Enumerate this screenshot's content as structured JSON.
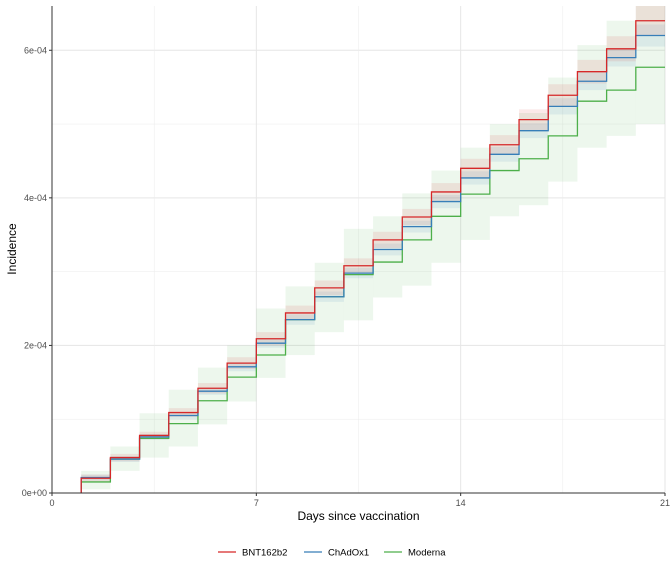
{
  "chart_data": {
    "type": "line",
    "step": true,
    "xlabel": "Days since vaccination",
    "ylabel": "Incidence",
    "xlim": [
      0,
      21
    ],
    "ylim": [
      0,
      0.00066
    ],
    "x_ticks": [
      0,
      7,
      14,
      21
    ],
    "x_tick_labels": [
      "0",
      "7",
      "14",
      "21"
    ],
    "y_ticks": [
      0,
      0.0002,
      0.0004,
      0.0006
    ],
    "y_tick_labels": [
      "0e+00",
      "2e-04",
      "4e-04",
      "6e-04"
    ],
    "grid": true,
    "legend_position": "bottom",
    "x": [
      1,
      2,
      3,
      4,
      5,
      6,
      7,
      8,
      9,
      10,
      11,
      12,
      13,
      14,
      15,
      16,
      17,
      18,
      19,
      20
    ],
    "series": [
      {
        "name": "BNT162b2",
        "color": "#d62728",
        "values": [
          2e-05,
          4.8e-05,
          7.8e-05,
          0.000109,
          0.000142,
          0.000176,
          0.000209,
          0.000244,
          0.000278,
          0.000308,
          0.000343,
          0.000374,
          0.000408,
          0.00044,
          0.000472,
          0.000506,
          0.000539,
          0.000571,
          0.000602,
          0.00064
        ],
        "lower": [
          1.5e-05,
          4.3e-05,
          7.3e-05,
          0.000103,
          0.000135,
          0.000168,
          0.0002,
          0.000234,
          0.000268,
          0.000298,
          0.000332,
          0.000363,
          0.000396,
          0.000427,
          0.000459,
          0.000492,
          0.000524,
          0.000555,
          0.000585,
          0.00062
        ],
        "upper": [
          2.5e-05,
          5.3e-05,
          8.3e-05,
          0.000115,
          0.000149,
          0.000184,
          0.000218,
          0.000254,
          0.000288,
          0.000318,
          0.000354,
          0.000385,
          0.00042,
          0.000453,
          0.000485,
          0.00052,
          0.000554,
          0.000587,
          0.000619,
          0.00066
        ]
      },
      {
        "name": "ChAdOx1",
        "color": "#377eb8",
        "values": [
          2.1e-05,
          4.6e-05,
          7.6e-05,
          0.000105,
          0.000138,
          0.000171,
          0.000203,
          0.000235,
          0.000266,
          0.000298,
          0.00033,
          0.000361,
          0.000395,
          0.000427,
          0.000459,
          0.000491,
          0.000524,
          0.000558,
          0.00059,
          0.00062
        ],
        "lower": [
          1.7e-05,
          4.2e-05,
          7.2e-05,
          0.0001,
          0.000133,
          0.000165,
          0.000197,
          0.000228,
          0.000259,
          0.000291,
          0.000322,
          0.000353,
          0.000386,
          0.000418,
          0.000449,
          0.000481,
          0.000513,
          0.000546,
          0.000578,
          0.000605
        ],
        "upper": [
          2.5e-05,
          5e-05,
          8e-05,
          0.00011,
          0.000143,
          0.000177,
          0.000209,
          0.000242,
          0.000273,
          0.000305,
          0.000338,
          0.000369,
          0.000404,
          0.000436,
          0.000469,
          0.000501,
          0.000535,
          0.00057,
          0.000602,
          0.000635
        ]
      },
      {
        "name": "Moderna",
        "color": "#4daf4a",
        "values": [
          1.5e-05,
          4.6e-05,
          7.4e-05,
          9.4e-05,
          0.000125,
          0.000157,
          0.000187,
          0.000235,
          0.000266,
          0.000296,
          0.000313,
          0.000343,
          0.000375,
          0.000405,
          0.000437,
          0.000453,
          0.000484,
          0.000531,
          0.000546,
          0.000577
        ],
        "lower": [
          5e-06,
          3e-05,
          4.8e-05,
          6.3e-05,
          9.3e-05,
          0.000124,
          0.000156,
          0.000187,
          0.000218,
          0.000234,
          0.000265,
          0.000281,
          0.000312,
          0.000343,
          0.000375,
          0.00039,
          0.000422,
          0.000468,
          0.000484,
          0.0005
        ],
        "upper": [
          3e-05,
          6.3e-05,
          0.000108,
          0.00014,
          0.00017,
          0.0002,
          0.00025,
          0.00028,
          0.000312,
          0.000358,
          0.000375,
          0.000406,
          0.000437,
          0.000468,
          0.0005,
          0.000515,
          0.000563,
          0.000607,
          0.00064,
          0.00066
        ]
      }
    ]
  }
}
